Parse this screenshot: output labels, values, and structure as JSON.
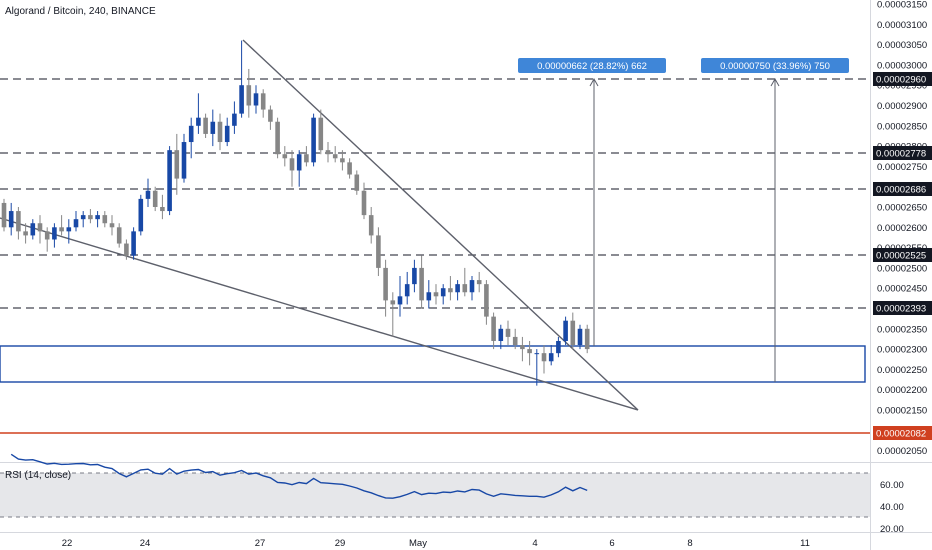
{
  "header": {
    "title": "Algorand / Bitcoin, 240, BINANCE"
  },
  "rsi": {
    "label": "RSI (14, close)",
    "ticks": [
      "60.00",
      "40.00",
      "20.00"
    ]
  },
  "colors": {
    "up": "#1848a6",
    "down": "#868686",
    "level_line": "#434651",
    "wedge": "#5d606b",
    "box": "#1848a6",
    "support": "#d0401f",
    "tag_bg": "#131722",
    "callout_bg": "#3f86d8",
    "rsi_line": "#1848a6",
    "rsi_band": "#e2e3e6"
  },
  "chart_data": {
    "type": "candlestick",
    "title": "Algorand / Bitcoin, 240, BINANCE",
    "y_tick_labels": [
      "0.00003150",
      "0.00003100",
      "0.00003050",
      "0.00003000",
      "0.00002950",
      "0.00002900",
      "0.00002850",
      "0.00002800",
      "0.00002750",
      "0.00002700",
      "0.00002650",
      "0.00002600",
      "0.00002550",
      "0.00002500",
      "0.00002450",
      "0.00002400",
      "0.00002350",
      "0.00002300",
      "0.00002250",
      "0.00002200",
      "0.00002150",
      "0.00002100",
      "0.00002050"
    ],
    "ylim": [
      2.02e-05,
      3.17e-05
    ],
    "x_tick_labels": [
      "22",
      "24",
      "27",
      "29",
      "May",
      "4",
      "6",
      "8",
      "11"
    ],
    "horizontal_levels": [
      "0.00002960",
      "0.00002778",
      "0.00002686",
      "0.00002525",
      "0.00002393"
    ],
    "support_level": "0.00002082",
    "callouts": [
      "0.00000662 (28.82%) 662",
      "0.00000750 (33.96%) 750"
    ],
    "candles": [
      {
        "o": 2.66e-05,
        "h": 2.67e-05,
        "l": 2.59e-05,
        "c": 2.6e-05
      },
      {
        "o": 2.6e-05,
        "h": 2.66e-05,
        "l": 2.58e-05,
        "c": 2.64e-05
      },
      {
        "o": 2.64e-05,
        "h": 2.65e-05,
        "l": 2.57e-05,
        "c": 2.59e-05
      },
      {
        "o": 2.59e-05,
        "h": 2.61e-05,
        "l": 2.56e-05,
        "c": 2.58e-05
      },
      {
        "o": 2.58e-05,
        "h": 2.62e-05,
        "l": 2.57e-05,
        "c": 2.61e-05
      },
      {
        "o": 2.61e-05,
        "h": 2.63e-05,
        "l": 2.56e-05,
        "c": 2.59e-05
      },
      {
        "o": 2.59e-05,
        "h": 2.6e-05,
        "l": 2.54e-05,
        "c": 2.57e-05
      },
      {
        "o": 2.57e-05,
        "h": 2.61e-05,
        "l": 2.55e-05,
        "c": 2.6e-05
      },
      {
        "o": 2.6e-05,
        "h": 2.63e-05,
        "l": 2.58e-05,
        "c": 2.59e-05
      },
      {
        "o": 2.59e-05,
        "h": 2.62e-05,
        "l": 2.56e-05,
        "c": 2.6e-05
      },
      {
        "o": 2.6e-05,
        "h": 2.64e-05,
        "l": 2.59e-05,
        "c": 2.62e-05
      },
      {
        "o": 2.62e-05,
        "h": 2.64e-05,
        "l": 2.6e-05,
        "c": 2.63e-05
      },
      {
        "o": 2.63e-05,
        "h": 2.645e-05,
        "l": 2.61e-05,
        "c": 2.62e-05
      },
      {
        "o": 2.62e-05,
        "h": 2.64e-05,
        "l": 2.6e-05,
        "c": 2.63e-05
      },
      {
        "o": 2.63e-05,
        "h": 2.64e-05,
        "l": 2.6e-05,
        "c": 2.61e-05
      },
      {
        "o": 2.61e-05,
        "h": 2.63e-05,
        "l": 2.58e-05,
        "c": 2.6e-05
      },
      {
        "o": 2.6e-05,
        "h": 2.61e-05,
        "l": 2.55e-05,
        "c": 2.56e-05
      },
      {
        "o": 2.56e-05,
        "h": 2.57e-05,
        "l": 2.52e-05,
        "c": 2.53e-05
      },
      {
        "o": 2.53e-05,
        "h": 2.6e-05,
        "l": 2.52e-05,
        "c": 2.59e-05
      },
      {
        "o": 2.59e-05,
        "h": 2.68e-05,
        "l": 2.58e-05,
        "c": 2.67e-05
      },
      {
        "o": 2.67e-05,
        "h": 2.72e-05,
        "l": 2.65e-05,
        "c": 2.69e-05
      },
      {
        "o": 2.69e-05,
        "h": 2.7e-05,
        "l": 2.64e-05,
        "c": 2.65e-05
      },
      {
        "o": 2.65e-05,
        "h": 2.68e-05,
        "l": 2.62e-05,
        "c": 2.64e-05
      },
      {
        "o": 2.64e-05,
        "h": 2.8e-05,
        "l": 2.63e-05,
        "c": 2.79e-05
      },
      {
        "o": 2.79e-05,
        "h": 2.83e-05,
        "l": 2.68e-05,
        "c": 2.72e-05
      },
      {
        "o": 2.72e-05,
        "h": 2.83e-05,
        "l": 2.71e-05,
        "c": 2.81e-05
      },
      {
        "o": 2.81e-05,
        "h": 2.87e-05,
        "l": 2.77e-05,
        "c": 2.85e-05
      },
      {
        "o": 2.85e-05,
        "h": 2.93e-05,
        "l": 2.83e-05,
        "c": 2.87e-05
      },
      {
        "o": 2.87e-05,
        "h": 2.88e-05,
        "l": 2.82e-05,
        "c": 2.83e-05
      },
      {
        "o": 2.83e-05,
        "h": 2.89e-05,
        "l": 2.8e-05,
        "c": 2.86e-05
      },
      {
        "o": 2.86e-05,
        "h": 2.88e-05,
        "l": 2.79e-05,
        "c": 2.81e-05
      },
      {
        "o": 2.81e-05,
        "h": 2.87e-05,
        "l": 2.8e-05,
        "c": 2.85e-05
      },
      {
        "o": 2.85e-05,
        "h": 2.91e-05,
        "l": 2.83e-05,
        "c": 2.88e-05
      },
      {
        "o": 2.88e-05,
        "h": 3.06e-05,
        "l": 2.87e-05,
        "c": 2.95e-05
      },
      {
        "o": 2.95e-05,
        "h": 2.99e-05,
        "l": 2.87e-05,
        "c": 2.9e-05
      },
      {
        "o": 2.9e-05,
        "h": 2.95e-05,
        "l": 2.88e-05,
        "c": 2.93e-05
      },
      {
        "o": 2.93e-05,
        "h": 2.94e-05,
        "l": 2.87e-05,
        "c": 2.89e-05
      },
      {
        "o": 2.89e-05,
        "h": 2.9e-05,
        "l": 2.84e-05,
        "c": 2.86e-05
      },
      {
        "o": 2.86e-05,
        "h": 2.87e-05,
        "l": 2.77e-05,
        "c": 2.78e-05
      },
      {
        "o": 2.78e-05,
        "h": 2.8e-05,
        "l": 2.75e-05,
        "c": 2.77e-05
      },
      {
        "o": 2.77e-05,
        "h": 2.79e-05,
        "l": 2.7e-05,
        "c": 2.74e-05
      },
      {
        "o": 2.74e-05,
        "h": 2.79e-05,
        "l": 2.7e-05,
        "c": 2.78e-05
      },
      {
        "o": 2.78e-05,
        "h": 2.8e-05,
        "l": 2.75e-05,
        "c": 2.76e-05
      },
      {
        "o": 2.76e-05,
        "h": 2.88e-05,
        "l": 2.75e-05,
        "c": 2.87e-05
      },
      {
        "o": 2.87e-05,
        "h": 2.89e-05,
        "l": 2.78e-05,
        "c": 2.79e-05
      },
      {
        "o": 2.79e-05,
        "h": 2.81e-05,
        "l": 2.76e-05,
        "c": 2.78e-05
      },
      {
        "o": 2.78e-05,
        "h": 2.8e-05,
        "l": 2.76e-05,
        "c": 2.77e-05
      },
      {
        "o": 2.77e-05,
        "h": 2.79e-05,
        "l": 2.74e-05,
        "c": 2.76e-05
      },
      {
        "o": 2.76e-05,
        "h": 2.77e-05,
        "l": 2.72e-05,
        "c": 2.73e-05
      },
      {
        "o": 2.73e-05,
        "h": 2.74e-05,
        "l": 2.68e-05,
        "c": 2.69e-05
      },
      {
        "o": 2.69e-05,
        "h": 2.71e-05,
        "l": 2.62e-05,
        "c": 2.63e-05
      },
      {
        "o": 2.63e-05,
        "h": 2.65e-05,
        "l": 2.56e-05,
        "c": 2.58e-05
      },
      {
        "o": 2.58e-05,
        "h": 2.6e-05,
        "l": 2.48e-05,
        "c": 2.5e-05
      },
      {
        "o": 2.5e-05,
        "h": 2.52e-05,
        "l": 2.38e-05,
        "c": 2.42e-05
      },
      {
        "o": 2.42e-05,
        "h": 2.44e-05,
        "l": 2.33e-05,
        "c": 2.41e-05
      },
      {
        "o": 2.41e-05,
        "h": 2.48e-05,
        "l": 2.38e-05,
        "c": 2.43e-05
      },
      {
        "o": 2.43e-05,
        "h": 2.49e-05,
        "l": 2.41e-05,
        "c": 2.46e-05
      },
      {
        "o": 2.46e-05,
        "h": 2.52e-05,
        "l": 2.44e-05,
        "c": 2.5e-05
      },
      {
        "o": 2.5e-05,
        "h": 2.53e-05,
        "l": 2.4e-05,
        "c": 2.42e-05
      },
      {
        "o": 2.42e-05,
        "h": 2.47e-05,
        "l": 2.4e-05,
        "c": 2.44e-05
      },
      {
        "o": 2.44e-05,
        "h": 2.46e-05,
        "l": 2.41e-05,
        "c": 2.43e-05
      },
      {
        "o": 2.43e-05,
        "h": 2.46e-05,
        "l": 2.41e-05,
        "c": 2.45e-05
      },
      {
        "o": 2.45e-05,
        "h": 2.48e-05,
        "l": 2.42e-05,
        "c": 2.44e-05
      },
      {
        "o": 2.44e-05,
        "h": 2.47e-05,
        "l": 2.42e-05,
        "c": 2.46e-05
      },
      {
        "o": 2.46e-05,
        "h": 2.5e-05,
        "l": 2.43e-05,
        "c": 2.44e-05
      },
      {
        "o": 2.44e-05,
        "h": 2.48e-05,
        "l": 2.42e-05,
        "c": 2.47e-05
      },
      {
        "o": 2.47e-05,
        "h": 2.49e-05,
        "l": 2.44e-05,
        "c": 2.46e-05
      },
      {
        "o": 2.46e-05,
        "h": 2.47e-05,
        "l": 2.36e-05,
        "c": 2.38e-05
      },
      {
        "o": 2.38e-05,
        "h": 2.39e-05,
        "l": 2.3e-05,
        "c": 2.32e-05
      },
      {
        "o": 2.32e-05,
        "h": 2.36e-05,
        "l": 2.3e-05,
        "c": 2.35e-05
      },
      {
        "o": 2.35e-05,
        "h": 2.37e-05,
        "l": 2.31e-05,
        "c": 2.33e-05
      },
      {
        "o": 2.33e-05,
        "h": 2.35e-05,
        "l": 2.3e-05,
        "c": 2.31e-05
      },
      {
        "o": 2.31e-05,
        "h": 2.33e-05,
        "l": 2.27e-05,
        "c": 2.3e-05
      },
      {
        "o": 2.3e-05,
        "h": 2.32e-05,
        "l": 2.26e-05,
        "c": 2.29e-05
      },
      {
        "o": 2.29e-05,
        "h": 2.3e-05,
        "l": 2.21e-05,
        "c": 2.29e-05
      },
      {
        "o": 2.29e-05,
        "h": 2.31e-05,
        "l": 2.24e-05,
        "c": 2.27e-05
      },
      {
        "o": 2.27e-05,
        "h": 2.31e-05,
        "l": 2.26e-05,
        "c": 2.29e-05
      },
      {
        "o": 2.29e-05,
        "h": 2.33e-05,
        "l": 2.28e-05,
        "c": 2.32e-05
      },
      {
        "o": 2.32e-05,
        "h": 2.38e-05,
        "l": 2.31e-05,
        "c": 2.37e-05
      },
      {
        "o": 2.37e-05,
        "h": 2.39e-05,
        "l": 2.3e-05,
        "c": 2.31e-05
      },
      {
        "o": 2.31e-05,
        "h": 2.36e-05,
        "l": 2.3e-05,
        "c": 2.35e-05
      },
      {
        "o": 2.35e-05,
        "h": 2.36e-05,
        "l": 2.29e-05,
        "c": 2.3e-05
      }
    ]
  }
}
